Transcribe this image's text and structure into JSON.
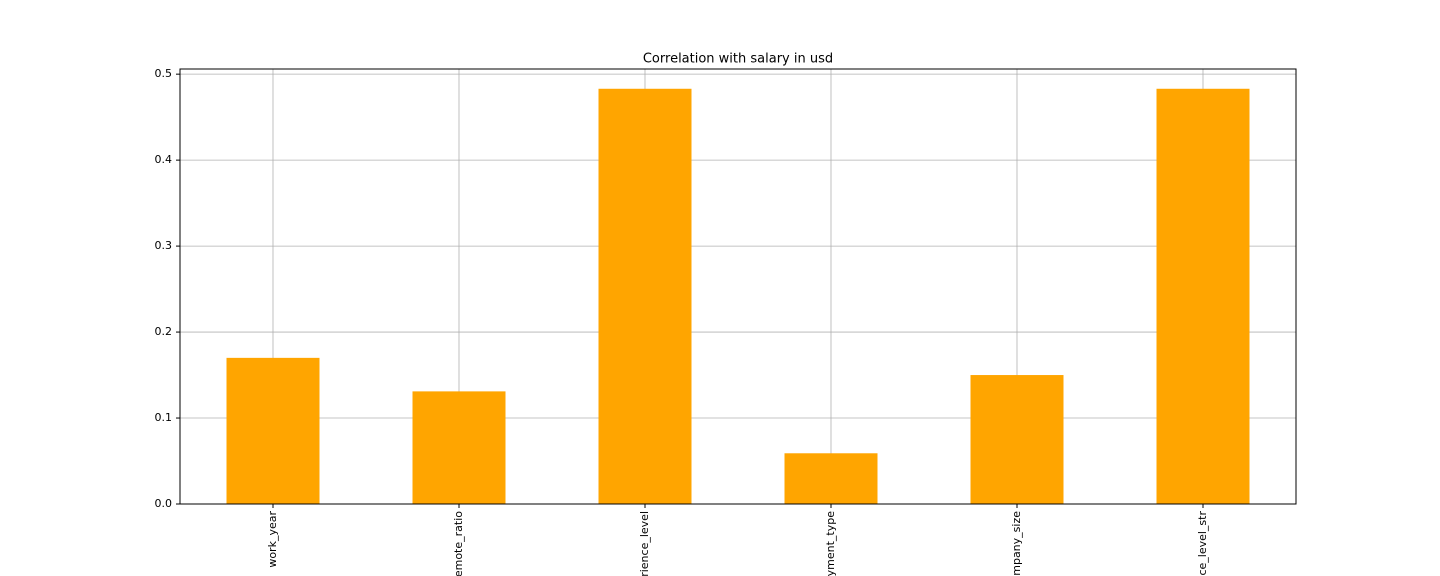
{
  "chart_data": {
    "type": "bar",
    "title": "Correlation with salary in usd",
    "categories": [
      "work_year",
      "remote_ratio",
      "erience_level",
      "oyment_type",
      "ompany_size",
      "nce_level_str"
    ],
    "values": [
      0.17,
      0.131,
      0.483,
      0.059,
      0.15,
      0.483
    ],
    "color": "#ffa500",
    "ylim": [
      0,
      0.506
    ],
    "yticks": [
      {
        "value": 0,
        "label": "0.0"
      },
      0.1,
      0.2,
      0.3,
      0.4,
      0.5
    ],
    "grid": true
  }
}
